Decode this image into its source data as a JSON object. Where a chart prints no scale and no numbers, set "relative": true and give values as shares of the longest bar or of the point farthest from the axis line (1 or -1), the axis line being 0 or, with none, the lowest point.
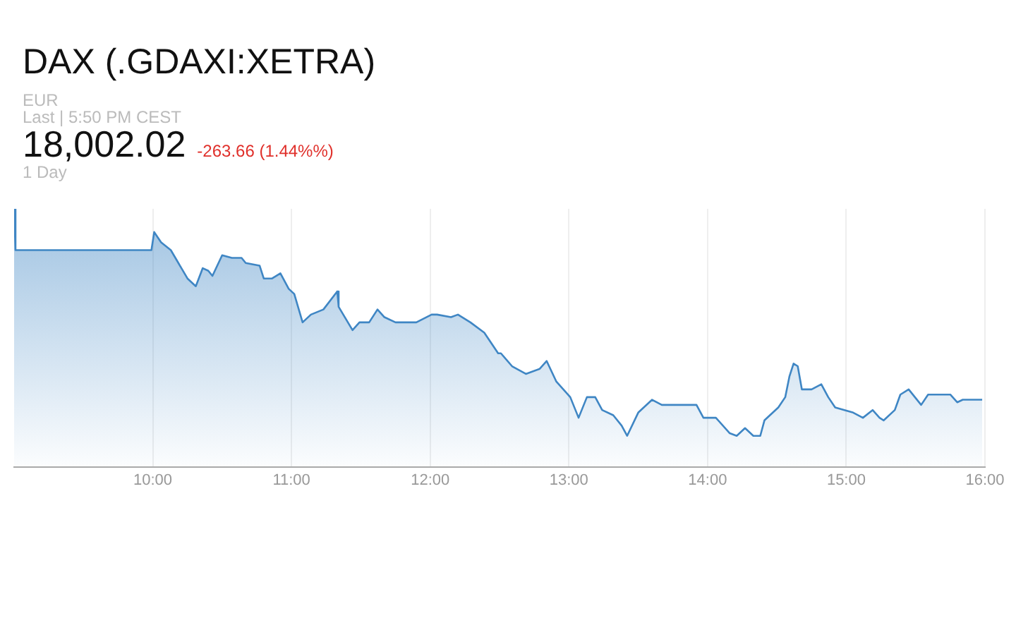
{
  "chart_data": {
    "type": "area",
    "title": "DAX (.GDAXI:XETRA)",
    "annotations": [
      "EUR",
      "Last | 5:50 PM CEST",
      "18,002.02",
      "-263.66 (1.44%%)",
      "1 Day"
    ],
    "relative": true,
    "grid": "x",
    "legend": false,
    "marker": "none",
    "line_style": "solid",
    "xlim": [
      9,
      16
    ],
    "xticks": [
      {
        "value": 10,
        "label": "10:00"
      },
      {
        "value": 11,
        "label": "11:00"
      },
      {
        "value": 12,
        "label": "12:00"
      },
      {
        "value": 13,
        "label": "13:00"
      },
      {
        "value": 14,
        "label": "14:00"
      },
      {
        "value": 15,
        "label": "15:00"
      },
      {
        "value": 16,
        "label": "16:00"
      }
    ],
    "series": [
      {
        "color": "#3f86c4",
        "x": [
          9.0,
          9.01,
          9.99,
          10.01,
          10.06,
          10.13,
          10.25,
          10.31,
          10.36,
          10.4,
          10.43,
          10.5,
          10.57,
          10.64,
          10.67,
          10.77,
          10.8,
          10.86,
          10.92,
          10.98,
          11.02,
          11.08,
          11.14,
          11.23,
          11.33,
          11.34,
          11.44,
          11.49,
          11.56,
          11.62,
          11.67,
          11.75,
          11.8,
          11.9,
          12.01,
          12.05,
          12.15,
          12.2,
          12.29,
          12.39,
          12.49,
          12.51,
          12.59,
          12.69,
          12.79,
          12.84,
          12.91,
          13.01,
          13.07,
          13.13,
          13.19,
          13.24,
          13.32,
          13.38,
          13.42,
          13.5,
          13.6,
          13.67,
          13.77,
          13.92,
          13.97,
          14.06,
          14.16,
          14.21,
          14.27,
          14.33,
          14.38,
          14.41,
          14.51,
          14.56,
          14.59,
          14.62,
          14.65,
          14.68,
          14.75,
          14.82,
          14.87,
          14.92,
          15.05,
          15.12,
          15.19,
          15.24,
          15.27,
          15.35,
          15.39,
          15.45,
          15.54,
          15.59,
          15.65,
          15.75,
          15.8,
          15.84,
          15.98
        ],
        "values": [
          1.0,
          0.84,
          0.84,
          0.91,
          0.87,
          0.84,
          0.73,
          0.7,
          0.77,
          0.76,
          0.74,
          0.82,
          0.81,
          0.81,
          0.79,
          0.78,
          0.73,
          0.73,
          0.75,
          0.69,
          0.67,
          0.56,
          0.59,
          0.61,
          0.68,
          0.62,
          0.53,
          0.56,
          0.56,
          0.61,
          0.58,
          0.56,
          0.56,
          0.56,
          0.59,
          0.59,
          0.58,
          0.59,
          0.56,
          0.52,
          0.44,
          0.44,
          0.39,
          0.36,
          0.38,
          0.41,
          0.33,
          0.27,
          0.19,
          0.27,
          0.27,
          0.22,
          0.2,
          0.16,
          0.12,
          0.21,
          0.26,
          0.24,
          0.24,
          0.24,
          0.19,
          0.19,
          0.13,
          0.12,
          0.15,
          0.12,
          0.12,
          0.18,
          0.23,
          0.27,
          0.35,
          0.4,
          0.39,
          0.3,
          0.3,
          0.32,
          0.27,
          0.23,
          0.21,
          0.19,
          0.22,
          0.19,
          0.18,
          0.22,
          0.28,
          0.3,
          0.24,
          0.28,
          0.28,
          0.28,
          0.25,
          0.26,
          0.26
        ]
      }
    ]
  }
}
